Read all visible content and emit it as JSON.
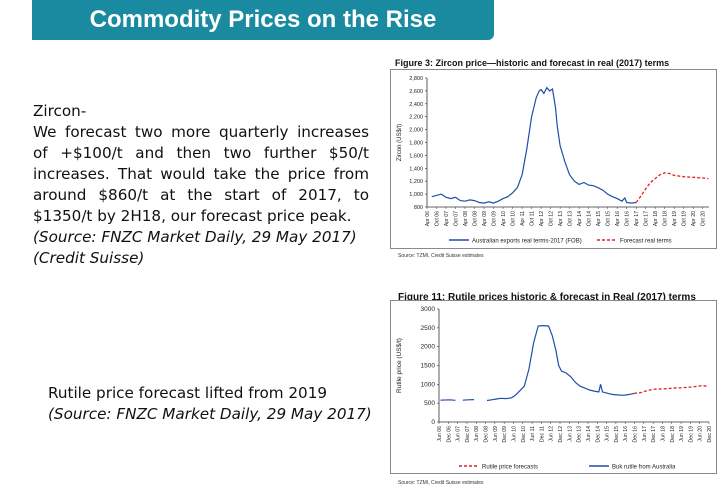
{
  "slide": {
    "title": "Commodity Prices on the Rise",
    "banner_color": "#1a8aa0"
  },
  "zircon_text": {
    "heading": "Zircon-",
    "body": "We forecast two more quarterly increases of +$100/t and then two further $50/t increases. That would take the price from around $860/t at the start of 2017, to $1350/t by 2H18, our forecast price peak.",
    "source": "(Source: FNZC Market Daily, 29 May 2017)",
    "credit": "(Credit Suisse)"
  },
  "rutile_text": {
    "heading": "Rutile price forecast lifted from 2019",
    "source": "(Source: FNZC Market Daily, 29 May 2017)"
  },
  "chart_data": [
    {
      "type": "line",
      "title": "Figure 3: Zircon price—historic and forecast in real (2017) terms",
      "ylabel": "Zircon (US$/t)",
      "xlabel": "",
      "ylim": [
        800,
        2800
      ],
      "yticks": [
        800,
        1000,
        1200,
        1400,
        1600,
        1800,
        2000,
        2200,
        2400,
        2600,
        2800
      ],
      "ytick_labels": [
        "800",
        "1,000",
        "1,200",
        "1,400",
        "1,600",
        "1,800",
        "2,000",
        "2,200",
        "2,400",
        "2,600",
        "2,800"
      ],
      "xlim": [
        2006,
        2020.83
      ],
      "x_tick_labels": [
        "Apr 06",
        "Oct 06",
        "Apr 07",
        "Oct 07",
        "Apr 08",
        "Oct 08",
        "Apr 09",
        "Oct 09",
        "Apr 10",
        "Oct 10",
        "Apr 11",
        "Oct 11",
        "Apr 12",
        "Oct 12",
        "Apr 13",
        "Oct 13",
        "Apr 14",
        "Oct 14",
        "Apr 15",
        "Oct 15",
        "Apr 16",
        "Oct 16",
        "Apr 17",
        "Oct 17",
        "Apr 18",
        "Oct 18",
        "Apr 19",
        "Oct 19",
        "Apr 20",
        "Oct 20"
      ],
      "grid": false,
      "legend": "bottom",
      "source": "Source: TZMI, Credit Suisse estimates",
      "series": [
        {
          "name": "Australian exports real terms-2017 (FOB)",
          "color": "#1f4fa8",
          "style": "solid",
          "points": [
            [
              2006.25,
              960
            ],
            [
              2006.5,
              980
            ],
            [
              2006.75,
              1000
            ],
            [
              2007.0,
              950
            ],
            [
              2007.25,
              930
            ],
            [
              2007.5,
              950
            ],
            [
              2007.75,
              900
            ],
            [
              2008.0,
              890
            ],
            [
              2008.25,
              910
            ],
            [
              2008.5,
              900
            ],
            [
              2008.75,
              870
            ],
            [
              2009.0,
              860
            ],
            [
              2009.25,
              880
            ],
            [
              2009.5,
              860
            ],
            [
              2009.75,
              890
            ],
            [
              2010.0,
              930
            ],
            [
              2010.25,
              960
            ],
            [
              2010.5,
              1020
            ],
            [
              2010.75,
              1100
            ],
            [
              2011.0,
              1300
            ],
            [
              2011.25,
              1700
            ],
            [
              2011.5,
              2200
            ],
            [
              2011.75,
              2500
            ],
            [
              2011.9,
              2600
            ],
            [
              2012.0,
              2620
            ],
            [
              2012.15,
              2560
            ],
            [
              2012.3,
              2650
            ],
            [
              2012.45,
              2600
            ],
            [
              2012.6,
              2630
            ],
            [
              2012.75,
              2350
            ],
            [
              2012.85,
              2050
            ],
            [
              2013.0,
              1750
            ],
            [
              2013.25,
              1500
            ],
            [
              2013.5,
              1300
            ],
            [
              2013.75,
              1200
            ],
            [
              2014.0,
              1150
            ],
            [
              2014.25,
              1180
            ],
            [
              2014.5,
              1140
            ],
            [
              2014.75,
              1130
            ],
            [
              2015.0,
              1100
            ],
            [
              2015.25,
              1060
            ],
            [
              2015.5,
              1000
            ],
            [
              2015.75,
              960
            ],
            [
              2016.0,
              930
            ],
            [
              2016.25,
              890
            ],
            [
              2016.4,
              940
            ],
            [
              2016.5,
              870
            ],
            [
              2016.75,
              860
            ],
            [
              2017.0,
              870
            ]
          ]
        },
        {
          "name": "Forecast real terms",
          "color": "#e02020",
          "style": "dashed",
          "points": [
            [
              2017.0,
              870
            ],
            [
              2017.25,
              970
            ],
            [
              2017.5,
              1080
            ],
            [
              2017.75,
              1180
            ],
            [
              2018.0,
              1240
            ],
            [
              2018.25,
              1300
            ],
            [
              2018.5,
              1330
            ],
            [
              2018.75,
              1320
            ],
            [
              2019.0,
              1290
            ],
            [
              2019.5,
              1270
            ],
            [
              2020.0,
              1260
            ],
            [
              2020.5,
              1250
            ],
            [
              2020.8,
              1240
            ]
          ]
        }
      ]
    },
    {
      "type": "line",
      "title": "Figure 11: Rutile prices historic & forecast in Real (2017) terms",
      "ylabel": "Rutile price (US$/t)",
      "xlabel": "",
      "ylim": [
        0,
        3000
      ],
      "yticks": [
        0,
        500,
        1000,
        1500,
        2000,
        2500,
        3000
      ],
      "ytick_labels": [
        "0",
        "500",
        "1000",
        "1500",
        "2000",
        "2500",
        "3000"
      ],
      "xlim": [
        2006.42,
        2020.92
      ],
      "x_tick_labels": [
        "Jun 06",
        "Dec 06",
        "Jun 07",
        "Dec 07",
        "Jun 08",
        "Dec 08",
        "Jun 09",
        "Dec 09",
        "Jun 10",
        "Dec 10",
        "Jun 11",
        "Dec 11",
        "Jun 12",
        "Dec 12",
        "Jun 13",
        "Dec 13",
        "Jun 14",
        "Dec 14",
        "Jun 15",
        "Dec 15",
        "Jun 16",
        "Dec 16",
        "Jun 17",
        "Dec 17",
        "Jun 18",
        "Dec 18",
        "Jun 19",
        "Dec 19",
        "Jun 20",
        "Dec 20"
      ],
      "grid": false,
      "legend": "bottom",
      "source": "Source: TZMI, Credit Suisse estimates",
      "series": [
        {
          "name": "Rutile price forecasts",
          "color": "#e02020",
          "style": "dashed",
          "points": [
            [
              2016.9,
              760
            ],
            [
              2017.25,
              780
            ],
            [
              2017.5,
              820
            ],
            [
              2017.75,
              850
            ],
            [
              2018.0,
              870
            ],
            [
              2018.5,
              880
            ],
            [
              2019.0,
              900
            ],
            [
              2019.5,
              910
            ],
            [
              2020.0,
              930
            ],
            [
              2020.5,
              960
            ],
            [
              2020.9,
              950
            ]
          ]
        },
        {
          "name": "Buk rutile from Australia",
          "color": "#1f4fa8",
          "style": "solid",
          "segments": [
            [
              [
                2006.5,
                580
              ],
              [
                2007.0,
                590
              ],
              [
                2007.3,
                575
              ]
            ],
            [
              [
                2007.7,
                580
              ],
              [
                2008.0,
                590
              ],
              [
                2008.3,
                595
              ]
            ],
            [
              [
                2009.0,
                570
              ],
              [
                2009.25,
                590
              ],
              [
                2009.5,
                610
              ],
              [
                2009.75,
                630
              ],
              [
                2010.0,
                620
              ],
              [
                2010.3,
                640
              ],
              [
                2010.5,
                700
              ],
              [
                2010.75,
                820
              ],
              [
                2011.0,
                950
              ],
              [
                2011.25,
                1400
              ],
              [
                2011.5,
                2100
              ],
              [
                2011.75,
                2550
              ],
              [
                2012.0,
                2560
              ],
              [
                2012.3,
                2550
              ],
              [
                2012.5,
                2300
              ],
              [
                2012.7,
                1900
              ],
              [
                2012.85,
                1500
              ],
              [
                2013.0,
                1350
              ],
              [
                2013.25,
                1300
              ],
              [
                2013.5,
                1200
              ],
              [
                2013.75,
                1050
              ],
              [
                2014.0,
                950
              ],
              [
                2014.25,
                900
              ],
              [
                2014.5,
                850
              ],
              [
                2014.75,
                820
              ],
              [
                2015.0,
                800
              ],
              [
                2015.1,
                1000
              ],
              [
                2015.2,
                800
              ],
              [
                2015.5,
                760
              ],
              [
                2015.75,
                730
              ],
              [
                2016.0,
                720
              ],
              [
                2016.25,
                710
              ],
              [
                2016.5,
                720
              ],
              [
                2016.75,
                740
              ],
              [
                2016.9,
                760
              ]
            ]
          ]
        }
      ]
    }
  ]
}
